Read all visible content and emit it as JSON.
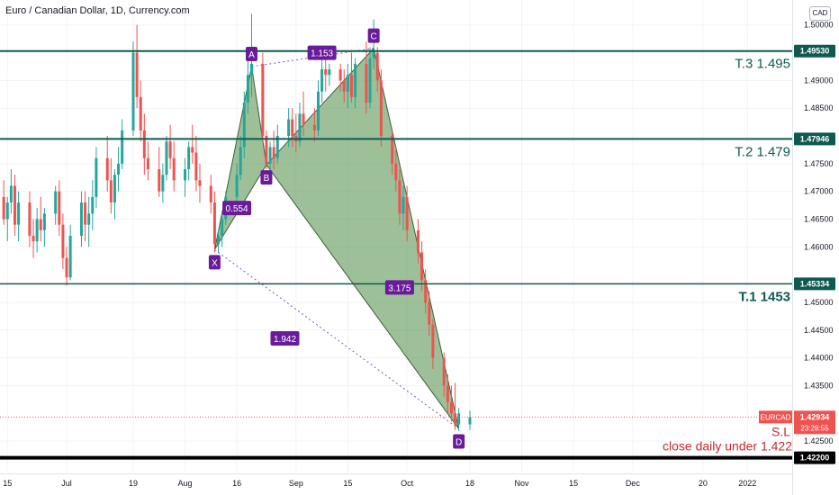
{
  "title": "Euro / Canadian Dollar, 1D, Currency.com",
  "currency_button": "CAD",
  "chart_data": {
    "type": "candlestick",
    "symbol": "EURCAD",
    "ylim": [
      1.4195,
      1.5045
    ],
    "y_ticks": [
      "1.50000",
      "1.49000",
      "1.48500",
      "1.47500",
      "1.47000",
      "1.46500",
      "1.46000",
      "1.45000",
      "1.44500",
      "1.44000",
      "1.43500",
      "1.42500"
    ],
    "y_tick_values": [
      1.5,
      1.49,
      1.485,
      1.475,
      1.47,
      1.465,
      1.46,
      1.45,
      1.445,
      1.44,
      1.435,
      1.425
    ],
    "x_ticks": [
      {
        "label": "15",
        "date": "2021-06-15"
      },
      {
        "label": "Jul",
        "date": "2021-07-01"
      },
      {
        "label": "19",
        "date": "2021-07-19"
      },
      {
        "label": "Aug",
        "date": "2021-08-02"
      },
      {
        "label": "16",
        "date": "2021-08-16"
      },
      {
        "label": "Sep",
        "date": "2021-09-01"
      },
      {
        "label": "15",
        "date": "2021-09-15"
      },
      {
        "label": "Oct",
        "date": "2021-10-01"
      },
      {
        "label": "18",
        "date": "2021-10-18"
      },
      {
        "label": "Nov",
        "date": "2021-11-01"
      },
      {
        "label": "15",
        "date": "2021-11-15"
      },
      {
        "label": "Dec",
        "date": "2021-12-01"
      },
      {
        "label": "20",
        "date": "2021-12-20"
      },
      {
        "label": "2022",
        "date": "2022-01-01"
      }
    ],
    "candles": [
      {
        "d": "2021-06-10",
        "o": 1.4685,
        "h": 1.471,
        "l": 1.464,
        "c": 1.466
      },
      {
        "d": "2021-06-11",
        "o": 1.466,
        "h": 1.47,
        "l": 1.462,
        "c": 1.469
      },
      {
        "d": "2021-06-14",
        "o": 1.469,
        "h": 1.472,
        "l": 1.464,
        "c": 1.465
      },
      {
        "d": "2021-06-15",
        "o": 1.465,
        "h": 1.469,
        "l": 1.461,
        "c": 1.468
      },
      {
        "d": "2021-06-16",
        "o": 1.468,
        "h": 1.474,
        "l": 1.466,
        "c": 1.471
      },
      {
        "d": "2021-06-17",
        "o": 1.471,
        "h": 1.473,
        "l": 1.462,
        "c": 1.464
      },
      {
        "d": "2021-06-18",
        "o": 1.464,
        "h": 1.47,
        "l": 1.461,
        "c": 1.468
      },
      {
        "d": "2021-06-21",
        "o": 1.468,
        "h": 1.47,
        "l": 1.46,
        "c": 1.462
      },
      {
        "d": "2021-06-22",
        "o": 1.462,
        "h": 1.465,
        "l": 1.458,
        "c": 1.461
      },
      {
        "d": "2021-06-23",
        "o": 1.461,
        "h": 1.467,
        "l": 1.459,
        "c": 1.465
      },
      {
        "d": "2021-06-24",
        "o": 1.465,
        "h": 1.469,
        "l": 1.461,
        "c": 1.463
      },
      {
        "d": "2021-06-25",
        "o": 1.463,
        "h": 1.467,
        "l": 1.46,
        "c": 1.466
      },
      {
        "d": "2021-06-28",
        "o": 1.466,
        "h": 1.471,
        "l": 1.464,
        "c": 1.47
      },
      {
        "d": "2021-06-29",
        "o": 1.47,
        "h": 1.472,
        "l": 1.462,
        "c": 1.464
      },
      {
        "d": "2021-06-30",
        "o": 1.464,
        "h": 1.466,
        "l": 1.456,
        "c": 1.458
      },
      {
        "d": "2021-07-01",
        "o": 1.458,
        "h": 1.46,
        "l": 1.453,
        "c": 1.4545
      },
      {
        "d": "2021-07-02",
        "o": 1.4545,
        "h": 1.464,
        "l": 1.454,
        "c": 1.462
      },
      {
        "d": "2021-07-05",
        "o": 1.462,
        "h": 1.47,
        "l": 1.46,
        "c": 1.468
      },
      {
        "d": "2021-07-06",
        "o": 1.468,
        "h": 1.47,
        "l": 1.461,
        "c": 1.464
      },
      {
        "d": "2021-07-07",
        "o": 1.464,
        "h": 1.469,
        "l": 1.46,
        "c": 1.466
      },
      {
        "d": "2021-07-08",
        "o": 1.466,
        "h": 1.472,
        "l": 1.463,
        "c": 1.469
      },
      {
        "d": "2021-07-09",
        "o": 1.469,
        "h": 1.478,
        "l": 1.467,
        "c": 1.476
      },
      {
        "d": "2021-07-12",
        "o": 1.476,
        "h": 1.48,
        "l": 1.47,
        "c": 1.472
      },
      {
        "d": "2021-07-13",
        "o": 1.472,
        "h": 1.476,
        "l": 1.466,
        "c": 1.468
      },
      {
        "d": "2021-07-14",
        "o": 1.468,
        "h": 1.474,
        "l": 1.465,
        "c": 1.473
      },
      {
        "d": "2021-07-15",
        "o": 1.473,
        "h": 1.478,
        "l": 1.47,
        "c": 1.475
      },
      {
        "d": "2021-07-16",
        "o": 1.475,
        "h": 1.483,
        "l": 1.474,
        "c": 1.481
      },
      {
        "d": "2021-07-19",
        "o": 1.481,
        "h": 1.497,
        "l": 1.48,
        "c": 1.495
      },
      {
        "d": "2021-07-20",
        "o": 1.495,
        "h": 1.5,
        "l": 1.485,
        "c": 1.487
      },
      {
        "d": "2021-07-21",
        "o": 1.487,
        "h": 1.49,
        "l": 1.479,
        "c": 1.481
      },
      {
        "d": "2021-07-22",
        "o": 1.481,
        "h": 1.484,
        "l": 1.473,
        "c": 1.476
      },
      {
        "d": "2021-07-23",
        "o": 1.476,
        "h": 1.479,
        "l": 1.472,
        "c": 1.474
      },
      {
        "d": "2021-07-26",
        "o": 1.474,
        "h": 1.478,
        "l": 1.469,
        "c": 1.47
      },
      {
        "d": "2021-07-27",
        "o": 1.47,
        "h": 1.475,
        "l": 1.468,
        "c": 1.473
      },
      {
        "d": "2021-07-28",
        "o": 1.473,
        "h": 1.48,
        "l": 1.472,
        "c": 1.479
      },
      {
        "d": "2021-07-29",
        "o": 1.479,
        "h": 1.482,
        "l": 1.474,
        "c": 1.476
      },
      {
        "d": "2021-07-30",
        "o": 1.476,
        "h": 1.479,
        "l": 1.47,
        "c": 1.472
      },
      {
        "d": "2021-08-02",
        "o": 1.472,
        "h": 1.476,
        "l": 1.469,
        "c": 1.474
      },
      {
        "d": "2021-08-03",
        "o": 1.474,
        "h": 1.479,
        "l": 1.472,
        "c": 1.478
      },
      {
        "d": "2021-08-04",
        "o": 1.478,
        "h": 1.482,
        "l": 1.475,
        "c": 1.477
      },
      {
        "d": "2021-08-05",
        "o": 1.477,
        "h": 1.48,
        "l": 1.47,
        "c": 1.472
      },
      {
        "d": "2021-08-06",
        "o": 1.472,
        "h": 1.475,
        "l": 1.468,
        "c": 1.471
      },
      {
        "d": "2021-08-09",
        "o": 1.471,
        "h": 1.473,
        "l": 1.466,
        "c": 1.468
      },
      {
        "d": "2021-08-10",
        "o": 1.468,
        "h": 1.47,
        "l": 1.459,
        "c": 1.4605
      },
      {
        "d": "2021-08-11",
        "o": 1.4605,
        "h": 1.463,
        "l": 1.459,
        "c": 1.462
      },
      {
        "d": "2021-08-12",
        "o": 1.462,
        "h": 1.466,
        "l": 1.46,
        "c": 1.465
      },
      {
        "d": "2021-08-13",
        "o": 1.465,
        "h": 1.47,
        "l": 1.464,
        "c": 1.469
      },
      {
        "d": "2021-08-16",
        "o": 1.469,
        "h": 1.475,
        "l": 1.467,
        "c": 1.473
      },
      {
        "d": "2021-08-17",
        "o": 1.473,
        "h": 1.48,
        "l": 1.472,
        "c": 1.478
      },
      {
        "d": "2021-08-18",
        "o": 1.478,
        "h": 1.488,
        "l": 1.476,
        "c": 1.486
      },
      {
        "d": "2021-08-19",
        "o": 1.486,
        "h": 1.494,
        "l": 1.484,
        "c": 1.491
      },
      {
        "d": "2021-08-20",
        "o": 1.491,
        "h": 1.502,
        "l": 1.487,
        "c": 1.493
      },
      {
        "d": "2021-08-23",
        "o": 1.493,
        "h": 1.495,
        "l": 1.479,
        "c": 1.48
      },
      {
        "d": "2021-08-24",
        "o": 1.48,
        "h": 1.481,
        "l": 1.474,
        "c": 1.475
      },
      {
        "d": "2021-08-25",
        "o": 1.475,
        "h": 1.479,
        "l": 1.473,
        "c": 1.478
      },
      {
        "d": "2021-08-26",
        "o": 1.478,
        "h": 1.481,
        "l": 1.474,
        "c": 1.476
      },
      {
        "d": "2021-08-27",
        "o": 1.476,
        "h": 1.482,
        "l": 1.475,
        "c": 1.48
      },
      {
        "d": "2021-08-30",
        "o": 1.48,
        "h": 1.485,
        "l": 1.478,
        "c": 1.483
      },
      {
        "d": "2021-08-31",
        "o": 1.483,
        "h": 1.485,
        "l": 1.478,
        "c": 1.48
      },
      {
        "d": "2021-09-01",
        "o": 1.48,
        "h": 1.484,
        "l": 1.477,
        "c": 1.479
      },
      {
        "d": "2021-09-02",
        "o": 1.479,
        "h": 1.486,
        "l": 1.478,
        "c": 1.484
      },
      {
        "d": "2021-09-03",
        "o": 1.484,
        "h": 1.488,
        "l": 1.48,
        "c": 1.482
      },
      {
        "d": "2021-09-06",
        "o": 1.482,
        "h": 1.485,
        "l": 1.479,
        "c": 1.481
      },
      {
        "d": "2021-09-07",
        "o": 1.481,
        "h": 1.49,
        "l": 1.48,
        "c": 1.488
      },
      {
        "d": "2021-09-08",
        "o": 1.488,
        "h": 1.495,
        "l": 1.486,
        "c": 1.492
      },
      {
        "d": "2021-09-09",
        "o": 1.492,
        "h": 1.494,
        "l": 1.488,
        "c": 1.491
      },
      {
        "d": "2021-09-10",
        "o": 1.491,
        "h": 1.493,
        "l": 1.489,
        "c": 1.492
      },
      {
        "d": "2021-09-13",
        "o": 1.492,
        "h": 1.493,
        "l": 1.488,
        "c": 1.49
      },
      {
        "d": "2021-09-14",
        "o": 1.49,
        "h": 1.492,
        "l": 1.486,
        "c": 1.488
      },
      {
        "d": "2021-09-15",
        "o": 1.488,
        "h": 1.493,
        "l": 1.485,
        "c": 1.491
      },
      {
        "d": "2021-09-16",
        "o": 1.491,
        "h": 1.495,
        "l": 1.486,
        "c": 1.487
      },
      {
        "d": "2021-09-17",
        "o": 1.487,
        "h": 1.494,
        "l": 1.485,
        "c": 1.493
      },
      {
        "d": "2021-09-20",
        "o": 1.493,
        "h": 1.497,
        "l": 1.484,
        "c": 1.486
      },
      {
        "d": "2021-09-21",
        "o": 1.486,
        "h": 1.496,
        "l": 1.485,
        "c": 1.494
      },
      {
        "d": "2021-09-22",
        "o": 1.494,
        "h": 1.501,
        "l": 1.492,
        "c": 1.495
      },
      {
        "d": "2021-09-23",
        "o": 1.495,
        "h": 1.496,
        "l": 1.488,
        "c": 1.49
      },
      {
        "d": "2021-09-24",
        "o": 1.49,
        "h": 1.492,
        "l": 1.478,
        "c": 1.48
      },
      {
        "d": "2021-09-27",
        "o": 1.48,
        "h": 1.481,
        "l": 1.473,
        "c": 1.475
      },
      {
        "d": "2021-09-28",
        "o": 1.475,
        "h": 1.478,
        "l": 1.47,
        "c": 1.472
      },
      {
        "d": "2021-09-29",
        "o": 1.472,
        "h": 1.474,
        "l": 1.464,
        "c": 1.466
      },
      {
        "d": "2021-09-30",
        "o": 1.466,
        "h": 1.471,
        "l": 1.463,
        "c": 1.469
      },
      {
        "d": "2021-10-01",
        "o": 1.469,
        "h": 1.471,
        "l": 1.461,
        "c": 1.463
      },
      {
        "d": "2021-10-04",
        "o": 1.463,
        "h": 1.465,
        "l": 1.457,
        "c": 1.459
      },
      {
        "d": "2021-10-05",
        "o": 1.459,
        "h": 1.461,
        "l": 1.452,
        "c": 1.454
      },
      {
        "d": "2021-10-06",
        "o": 1.454,
        "h": 1.456,
        "l": 1.448,
        "c": 1.45
      },
      {
        "d": "2021-10-07",
        "o": 1.45,
        "h": 1.452,
        "l": 1.444,
        "c": 1.446
      },
      {
        "d": "2021-10-08",
        "o": 1.446,
        "h": 1.447,
        "l": 1.438,
        "c": 1.44
      },
      {
        "d": "2021-10-11",
        "o": 1.44,
        "h": 1.441,
        "l": 1.433,
        "c": 1.435
      },
      {
        "d": "2021-10-12",
        "o": 1.435,
        "h": 1.437,
        "l": 1.43,
        "c": 1.432
      },
      {
        "d": "2021-10-13",
        "o": 1.432,
        "h": 1.435,
        "l": 1.4285,
        "c": 1.43
      },
      {
        "d": "2021-10-14",
        "o": 1.43,
        "h": 1.4355,
        "l": 1.427,
        "c": 1.428
      },
      {
        "d": "2021-10-15",
        "o": 1.428,
        "h": 1.431,
        "l": 1.4268,
        "c": 1.43
      },
      {
        "d": "2021-10-18",
        "o": 1.428,
        "h": 1.4305,
        "l": 1.427,
        "c": 1.4293
      }
    ],
    "horizontal_lines": [
      {
        "value": 1.4953,
        "label": "1.49530",
        "text": "T.3 1.495"
      },
      {
        "value": 1.47946,
        "label": "1.47946",
        "text": "T.2 1.479"
      },
      {
        "value": 1.45334,
        "label": "1.45334",
        "text": "T.1 1453"
      },
      {
        "value": 1.422,
        "label": "1.42200",
        "text": ""
      }
    ],
    "current_price": {
      "symbol": "EURCAD",
      "value": 1.42934,
      "label": "1.42934",
      "countdown": "23:28:55"
    },
    "stop_loss": {
      "label": "S.L",
      "note": "close daily under 1.422"
    },
    "pattern": {
      "points": [
        {
          "name": "X",
          "date": "2021-08-10",
          "price": 1.4595
        },
        {
          "name": "A",
          "date": "2021-08-20",
          "price": 1.4925
        },
        {
          "name": "B",
          "date": "2021-08-24",
          "price": 1.4748
        },
        {
          "name": "C",
          "date": "2021-09-22",
          "price": 1.4958
        },
        {
          "name": "D",
          "date": "2021-10-15",
          "price": 1.4272
        }
      ],
      "ratios": [
        {
          "value": "0.554",
          "date": "2021-08-16",
          "price": 1.467
        },
        {
          "value": "1.153",
          "date": "2021-09-08",
          "price": 1.495
        },
        {
          "value": "3.175",
          "date": "2021-09-29",
          "price": 1.4527
        },
        {
          "value": "1.942",
          "date": "2021-08-29",
          "price": 1.4435
        }
      ]
    }
  }
}
